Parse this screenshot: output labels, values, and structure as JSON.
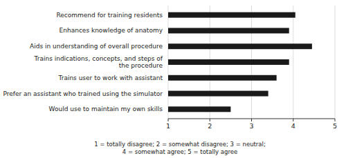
{
  "chart_data": {
    "type": "bar",
    "orientation": "horizontal",
    "categories": [
      "Would use to maintain my own skills",
      "Prefer an assistant who trained using the simulator",
      "Trains user to work with assistant",
      "Trains indications, concepts, and steps of\nthe procedure",
      "Aids in understanding of overall procedure",
      "Enhances knowledge of anatomy",
      "Recommend for training residents"
    ],
    "values": [
      2.5,
      3.4,
      3.6,
      3.9,
      4.45,
      3.9,
      4.05
    ],
    "color": "#1a1a1a",
    "xlim": [
      1,
      5
    ],
    "xticks": [
      1,
      2,
      3,
      4,
      5
    ],
    "grid": true,
    "xlabel": "1 = totally disagree;  2 = somewhat disagree;  3 = neutral;\n4 = somewhat agree;  5 = totally agree"
  }
}
